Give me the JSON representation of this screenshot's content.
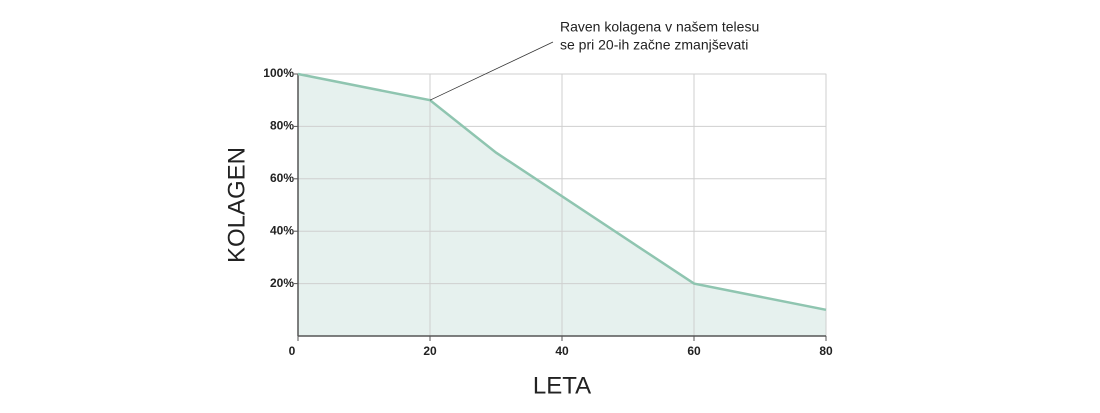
{
  "chart_data": {
    "type": "area",
    "x_label": "LETA",
    "y_label": "KOLAGEN",
    "annotation": [
      "Raven kolagena v našem telesu",
      "se pri 20-ih začne zmanjševati"
    ],
    "x": [
      0,
      20,
      30,
      60,
      80
    ],
    "series": [
      {
        "color": "#8fc5b0",
        "fill": "#e6f1ee",
        "values": [
          100,
          90,
          70,
          20,
          10
        ]
      }
    ],
    "xlim": [
      0,
      80
    ],
    "xticks": [
      0,
      20,
      40,
      60,
      80
    ],
    "ylim": [
      0,
      100
    ],
    "yticks": [
      {
        "value": 20,
        "label": "20%"
      },
      {
        "value": 40,
        "label": "40%"
      },
      {
        "value": 60,
        "label": "60%"
      },
      {
        "value": 80,
        "label": "80%"
      },
      {
        "value": 100,
        "label": "100%"
      }
    ],
    "grid": true
  }
}
